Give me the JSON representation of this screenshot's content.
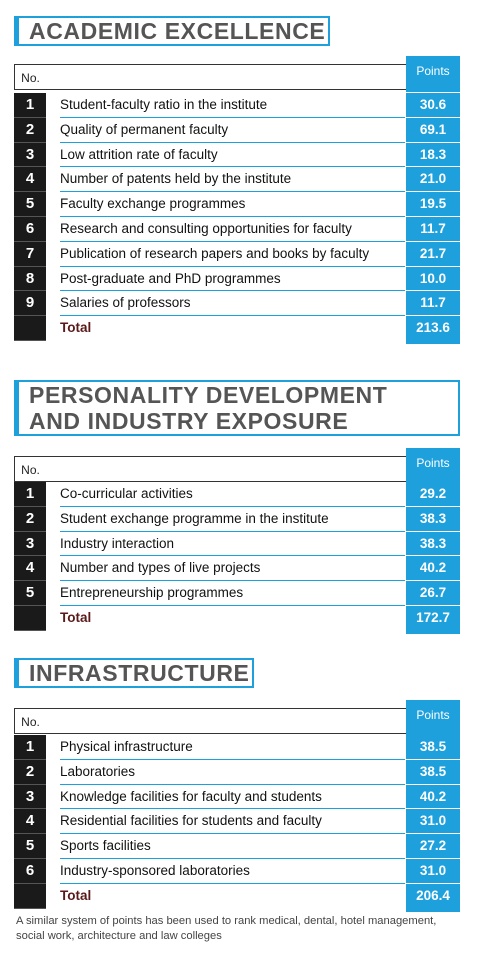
{
  "sections": [
    {
      "title_lines": [
        "ACADEMIC EXCELLENCE"
      ],
      "col_no": "No.",
      "col_points": "Points",
      "rows": [
        {
          "no": "1",
          "label": "Student-faculty ratio in the institute",
          "points": "30.6"
        },
        {
          "no": "2",
          "label": "Quality of permanent faculty",
          "points": "69.1"
        },
        {
          "no": "3",
          "label": "Low attrition rate of faculty",
          "points": "18.3"
        },
        {
          "no": "4",
          "label": "Number of patents held by the institute",
          "points": "21.0"
        },
        {
          "no": "5",
          "label": "Faculty exchange programmes",
          "points": "19.5"
        },
        {
          "no": "6",
          "label": "Research and consulting opportunities for faculty",
          "points": "11.7"
        },
        {
          "no": "7",
          "label": "Publication of research papers and books by faculty",
          "points": "21.7"
        },
        {
          "no": "8",
          "label": "Post-graduate and PhD programmes",
          "points": "10.0"
        },
        {
          "no": "9",
          "label": "Salaries of professors",
          "points": "11.7"
        }
      ],
      "total_label": "Total",
      "total_points": "213.6"
    },
    {
      "title_lines": [
        "PERSONALITY DEVELOPMENT",
        "AND INDUSTRY EXPOSURE"
      ],
      "col_no": "No.",
      "col_points": "Points",
      "rows": [
        {
          "no": "1",
          "label": "Co-curricular activities",
          "points": "29.2"
        },
        {
          "no": "2",
          "label": "Student exchange programme in the institute",
          "points": "38.3"
        },
        {
          "no": "3",
          "label": "Industry interaction",
          "points": "38.3"
        },
        {
          "no": "4",
          "label": "Number and types of live projects",
          "points": "40.2"
        },
        {
          "no": "5",
          "label": "Entrepreneurship programmes",
          "points": "26.7"
        }
      ],
      "total_label": "Total",
      "total_points": "172.7"
    },
    {
      "title_lines": [
        "INFRASTRUCTURE"
      ],
      "col_no": "No.",
      "col_points": "Points",
      "rows": [
        {
          "no": "1",
          "label": "Physical infrastructure",
          "points": "38.5"
        },
        {
          "no": "2",
          "label": "Laboratories",
          "points": "38.5"
        },
        {
          "no": "3",
          "label": "Knowledge facilities for faculty and students",
          "points": "40.2"
        },
        {
          "no": "4",
          "label": "Residential facilities for students and faculty",
          "points": "31.0"
        },
        {
          "no": "5",
          "label": "Sports facilities",
          "points": "27.2"
        },
        {
          "no": "6",
          "label": "Industry-sponsored laboratories",
          "points": "31.0"
        }
      ],
      "total_label": "Total",
      "total_points": "206.4"
    }
  ],
  "footnote": "A similar system of points has been used to rank medical, dental, hotel management, social work, architecture and law colleges",
  "colors": {
    "accent": "#1ea0dd",
    "number_bg": "#1a1a1a",
    "total_text": "#5a1a1a"
  }
}
